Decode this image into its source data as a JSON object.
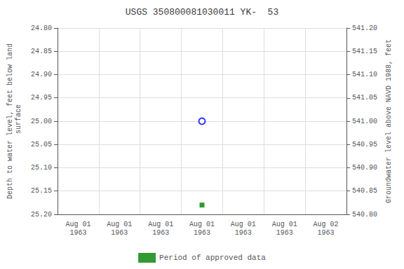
{
  "chart_data": {
    "type": "scatter",
    "title": "USGS 350800081030011 YK-  53",
    "ylabel": "Depth to water level, feet below land\n surface",
    "y2label": "Groundwater level above NAVD 1988, feet",
    "categories": [
      "Aug 01\n1963",
      "Aug 01\n1963",
      "Aug 01\n1963",
      "Aug 01\n1963",
      "Aug 01\n1963",
      "Aug 01\n1963",
      "Aug 02\n1963"
    ],
    "ylim": [
      25.2,
      24.8
    ],
    "yticks": [
      {
        "value": 24.8,
        "label": "24.80"
      },
      24.85,
      {
        "value": 24.9,
        "label": "24.90"
      },
      24.95,
      {
        "value": 25,
        "label": "25.00"
      },
      25.05,
      {
        "value": 25.1,
        "label": "25.10"
      },
      25.15,
      {
        "value": 25.2,
        "label": "25.20"
      }
    ],
    "y2lim": [
      540.8,
      541.2
    ],
    "y2ticks": [
      {
        "value": 541.2,
        "label": "541.20"
      },
      541.15,
      {
        "value": 541.1,
        "label": "541.10"
      },
      541.05,
      {
        "value": 541,
        "label": "541.00"
      },
      540.95,
      {
        "value": 540.9,
        "label": "540.90"
      },
      540.85,
      {
        "value": 540.8,
        "label": "540.80"
      }
    ],
    "grid": true,
    "legend": "bottom",
    "series": [
      {
        "marker": "circle",
        "color": "#0000ff",
        "values": [
          null,
          null,
          null,
          25.0,
          null,
          null,
          null
        ]
      },
      {
        "name": "Period of approved data",
        "marker": "square",
        "color": "#008000",
        "values": [
          null,
          null,
          null,
          25.18,
          null,
          null,
          null
        ]
      }
    ]
  }
}
